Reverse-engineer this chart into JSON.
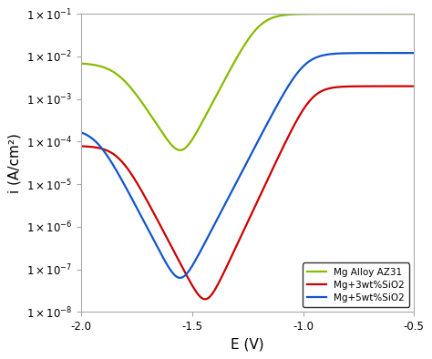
{
  "title": "",
  "xlabel": "E (V)",
  "ylabel": "i (A/cm²)",
  "xlim": [
    -2.0,
    -0.5
  ],
  "ylim_log": [
    -8,
    -1
  ],
  "background_color": "#ffffff",
  "legend_labels": [
    "Mg Alloy AZ31",
    "Mg+3wt%SiO2",
    "Mg+5wt%SiO2"
  ],
  "line_colors": [
    "#88bb00",
    "#cc0000",
    "#1155cc"
  ],
  "curves": [
    {
      "name": "green",
      "ecorr": -1.55,
      "log_icorr": -4.5,
      "ba": 0.1,
      "bc": 0.12,
      "log_il_anodic": -1.0,
      "log_il_cathodic": -2.15
    },
    {
      "name": "red",
      "ecorr": -1.44,
      "log_icorr": -8.0,
      "ba": 0.09,
      "bc": 0.1,
      "log_il_anodic": -2.7,
      "log_il_cathodic": -4.1
    },
    {
      "name": "blue",
      "ecorr": -1.555,
      "log_icorr": -7.5,
      "ba": 0.1,
      "bc": 0.1,
      "log_il_anodic": -1.92,
      "log_il_cathodic": -3.7
    }
  ]
}
